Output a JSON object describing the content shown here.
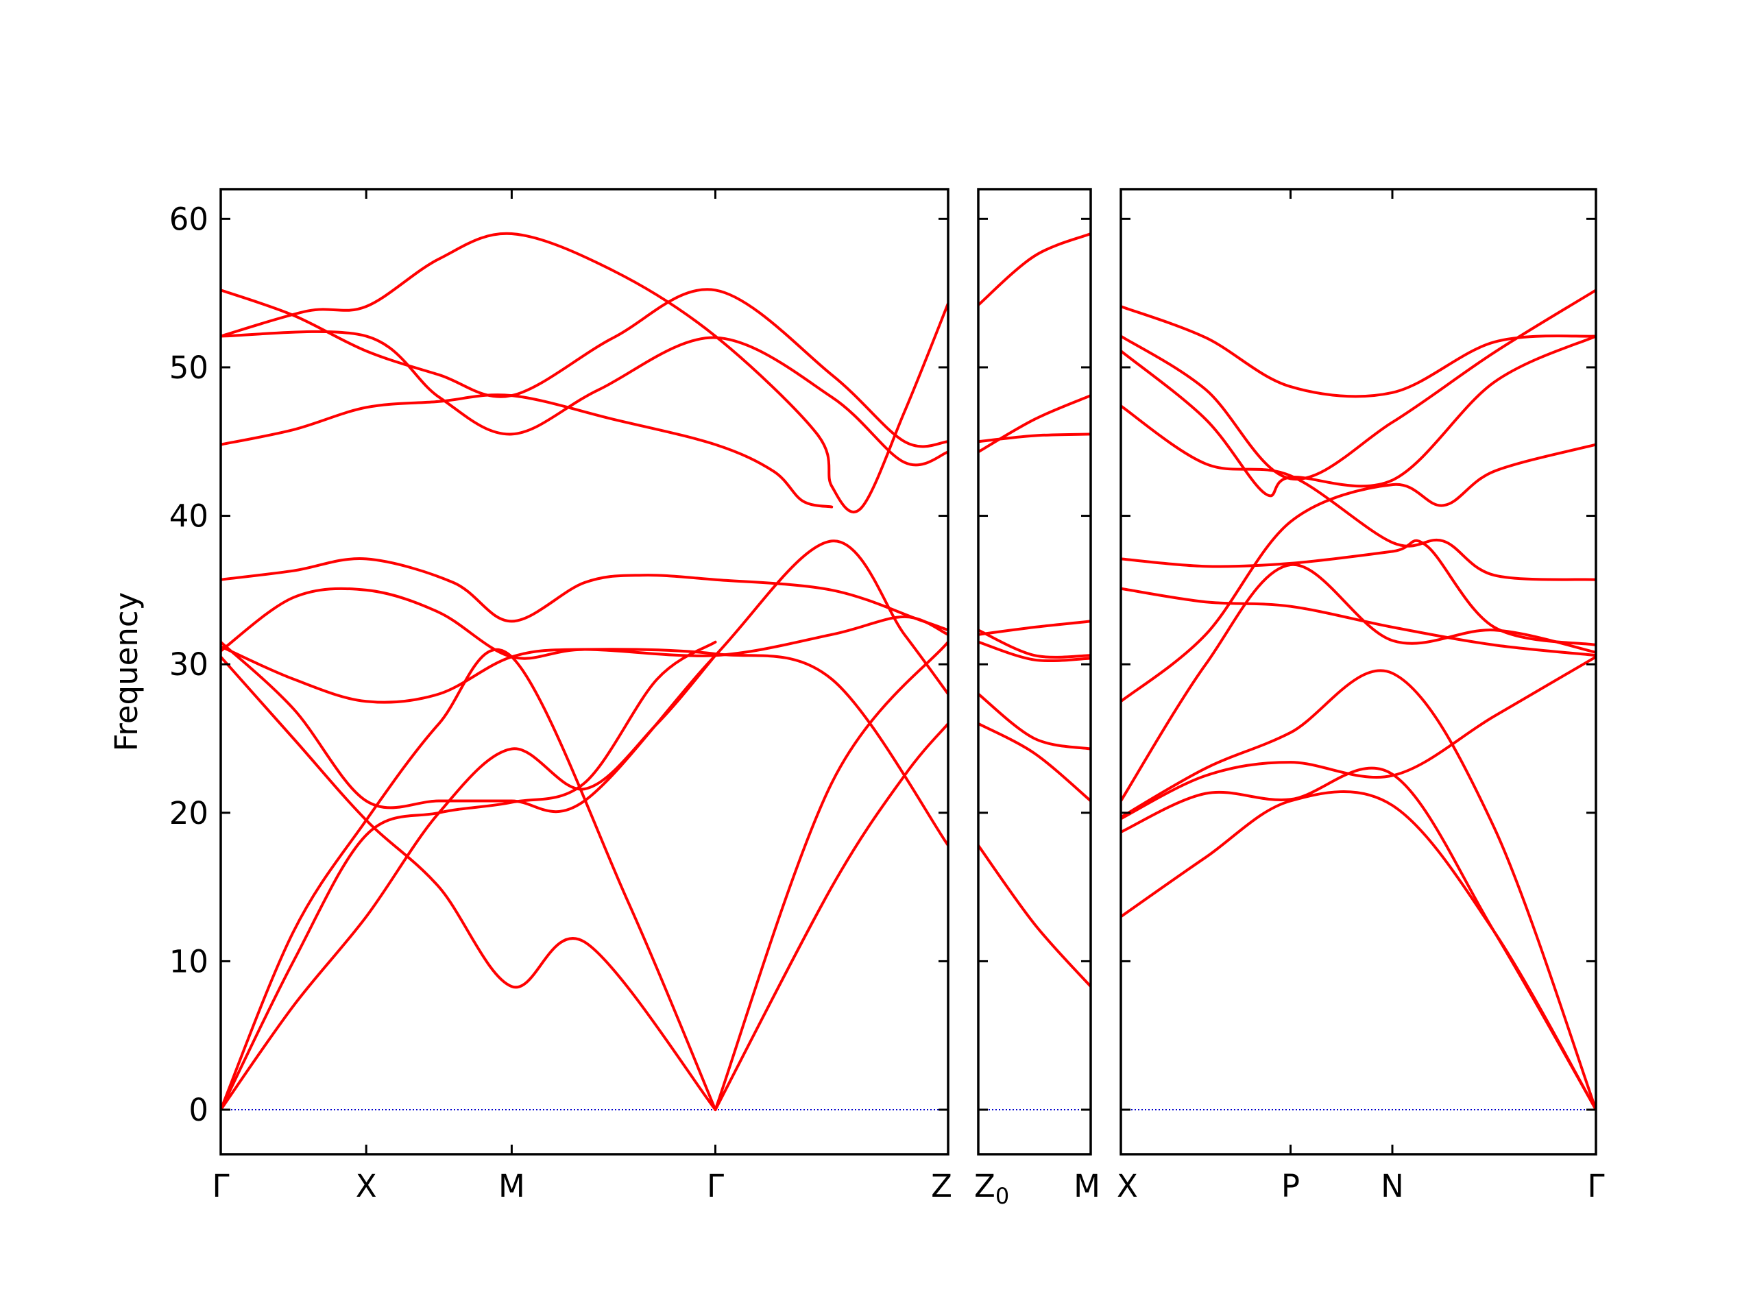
{
  "chart_data": {
    "type": "line",
    "title": "",
    "ylabel": "Frequency",
    "ylim": [
      -3,
      62
    ],
    "yticks": [
      0,
      10,
      20,
      30,
      40,
      50,
      60
    ],
    "grid": false,
    "legend": "none",
    "colors": {
      "band": "#ff0000",
      "zero_line": "#0000cc",
      "axis": "#000000"
    },
    "panels": [
      {
        "xlim": [
          0,
          5
        ],
        "xticks": [
          {
            "x": 0,
            "label": "Γ"
          },
          {
            "x": 1,
            "label": "X"
          },
          {
            "x": 2,
            "label": "M"
          },
          {
            "x": 3.4,
            "label": "Γ"
          },
          {
            "x": 5,
            "label": "Z"
          }
        ],
        "bands": [
          [
            [
              0,
              52.1
            ],
            [
              1,
              52.1
            ],
            [
              1.5,
              48
            ],
            [
              2,
              45.5
            ],
            [
              2.6,
              48.5
            ],
            [
              3.4,
              52
            ],
            [
              4.2,
              48
            ],
            [
              4.7,
              43.6
            ],
            [
              5,
              44.3
            ]
          ],
          [
            [
              0,
              55.2
            ],
            [
              0.5,
              53.5
            ],
            [
              1,
              51.1
            ],
            [
              1.5,
              49.5
            ],
            [
              2,
              48.1
            ],
            [
              2.7,
              52
            ],
            [
              3.4,
              55.2
            ],
            [
              4.2,
              49.5
            ],
            [
              4.7,
              45
            ],
            [
              5,
              45
            ]
          ],
          [
            [
              0,
              52.1
            ],
            [
              0.6,
              53.8
            ],
            [
              1,
              54.1
            ],
            [
              1.5,
              57.3
            ],
            [
              2,
              59
            ],
            [
              2.7,
              56.5
            ],
            [
              3.4,
              52.1
            ],
            [
              4.1,
              45.5
            ],
            [
              4.2,
              42
            ],
            [
              4.4,
              40.5
            ],
            [
              4.7,
              47
            ],
            [
              5,
              54.3
            ]
          ],
          [
            [
              0,
              44.8
            ],
            [
              0.5,
              45.8
            ],
            [
              1,
              47.3
            ],
            [
              1.5,
              47.7
            ],
            [
              2,
              48.1
            ],
            [
              2.7,
              46.5
            ],
            [
              3.4,
              44.8
            ],
            [
              3.8,
              43
            ],
            [
              4.0,
              41
            ],
            [
              4.2,
              40.6
            ]
          ],
          [
            [
              0,
              35.7
            ],
            [
              0.5,
              36.3
            ],
            [
              1,
              37.1
            ],
            [
              1.6,
              35.5
            ],
            [
              2,
              32.9
            ],
            [
              2.5,
              35.5
            ],
            [
              2.9,
              36
            ],
            [
              3.4,
              35.7
            ],
            [
              4.2,
              35
            ],
            [
              4.8,
              33
            ],
            [
              5,
              32.3
            ]
          ],
          [
            [
              0,
              30.9
            ],
            [
              0.5,
              34.5
            ],
            [
              1,
              35
            ],
            [
              1.5,
              33.5
            ],
            [
              2,
              30.5
            ],
            [
              2.5,
              31
            ],
            [
              3.4,
              30.6
            ],
            [
              4.2,
              32
            ],
            [
              4.7,
              33.2
            ],
            [
              5,
              32
            ]
          ],
          [
            [
              0,
              31.2
            ],
            [
              0.5,
              29
            ],
            [
              1,
              27.5
            ],
            [
              1.5,
              28
            ],
            [
              2,
              30.5
            ],
            [
              2.5,
              31
            ],
            [
              3.4,
              30.7
            ],
            [
              4.2,
              29
            ],
            [
              5,
              17.8
            ]
          ],
          [
            [
              0,
              31.5
            ],
            [
              0.5,
              27
            ],
            [
              1,
              20.8
            ],
            [
              1.5,
              20.8
            ],
            [
              2,
              20.8
            ],
            [
              2.5,
              20.8
            ],
            [
              3.4,
              30.6
            ],
            [
              4.2,
              38.3
            ],
            [
              4.7,
              32
            ],
            [
              5,
              28
            ]
          ],
          [
            [
              0,
              30.5
            ],
            [
              0.5,
              25
            ],
            [
              1,
              19.5
            ],
            [
              1.5,
              15
            ],
            [
              2,
              8.3
            ],
            [
              2.5,
              11.3
            ],
            [
              3.4,
              0
            ]
          ],
          [
            [
              0,
              0
            ],
            [
              0.5,
              12
            ],
            [
              1,
              19.5
            ],
            [
              1.5,
              26
            ],
            [
              2,
              30.5
            ],
            [
              2.8,
              14
            ],
            [
              3.4,
              0
            ]
          ],
          [
            [
              0,
              0
            ],
            [
              0.5,
              10
            ],
            [
              1,
              18.5
            ],
            [
              1.5,
              20
            ],
            [
              2,
              20.7
            ],
            [
              2.5,
              22
            ],
            [
              3,
              29
            ],
            [
              3.4,
              31.5
            ]
          ],
          [
            [
              0,
              0
            ],
            [
              0.5,
              7
            ],
            [
              1,
              13
            ],
            [
              1.5,
              20
            ],
            [
              2,
              24.3
            ],
            [
              2.5,
              21.6
            ],
            [
              3,
              26
            ],
            [
              3.4,
              30.6
            ]
          ],
          [
            [
              3.4,
              0
            ],
            [
              4.2,
              22
            ],
            [
              5,
              31.5
            ]
          ],
          [
            [
              3.4,
              0
            ],
            [
              4.2,
              15
            ],
            [
              4.7,
              22.5
            ],
            [
              5,
              26
            ]
          ]
        ]
      },
      {
        "xlim": [
          0,
          1
        ],
        "xticks": [
          {
            "x": 0,
            "label": "Z₀"
          },
          {
            "x": 1,
            "label": "M"
          }
        ],
        "bands": [
          [
            [
              0,
              54.2
            ],
            [
              0.5,
              57.5
            ],
            [
              1,
              59
            ]
          ],
          [
            [
              0,
              44.3
            ],
            [
              0.5,
              46.5
            ],
            [
              1,
              48.1
            ]
          ],
          [
            [
              0,
              45
            ],
            [
              0.5,
              45.4
            ],
            [
              1,
              45.5
            ]
          ],
          [
            [
              0,
              32
            ],
            [
              0.5,
              32.5
            ],
            [
              1,
              32.9
            ]
          ],
          [
            [
              0,
              32.3
            ],
            [
              0.5,
              30.6
            ],
            [
              1,
              30.6
            ]
          ],
          [
            [
              0,
              31.5
            ],
            [
              0.5,
              30.3
            ],
            [
              1,
              30.4
            ]
          ],
          [
            [
              0,
              28
            ],
            [
              0.5,
              25
            ],
            [
              1,
              24.3
            ]
          ],
          [
            [
              0,
              26
            ],
            [
              0.5,
              24
            ],
            [
              1,
              20.8
            ]
          ],
          [
            [
              0,
              17.8
            ],
            [
              0.5,
              12.5
            ],
            [
              1,
              8.3
            ]
          ]
        ]
      },
      {
        "xlim": [
          0,
          2.8
        ],
        "xticks": [
          {
            "x": 0,
            "label": "X"
          },
          {
            "x": 1.0,
            "label": "P"
          },
          {
            "x": 1.6,
            "label": "N"
          },
          {
            "x": 2.8,
            "label": "Γ"
          }
        ],
        "bands": [
          [
            [
              0,
              54.1
            ],
            [
              0.5,
              52
            ],
            [
              1,
              48.7
            ],
            [
              1.6,
              48.3
            ],
            [
              2.2,
              51.7
            ],
            [
              2.8,
              52.1
            ]
          ],
          [
            [
              0,
              52.1
            ],
            [
              0.5,
              48.5
            ],
            [
              1,
              42.5
            ],
            [
              1.6,
              46.3
            ],
            [
              2.2,
              51
            ],
            [
              2.8,
              55.2
            ]
          ],
          [
            [
              0,
              51.1
            ],
            [
              0.5,
              46.5
            ],
            [
              0.85,
              41.5
            ],
            [
              1.0,
              42.6
            ],
            [
              1.6,
              42.4
            ],
            [
              2.2,
              49
            ],
            [
              2.8,
              52.1
            ]
          ],
          [
            [
              0,
              47.4
            ],
            [
              0.5,
              43.5
            ],
            [
              1,
              42.7
            ],
            [
              1.6,
              38.2
            ],
            [
              1.9,
              38.3
            ],
            [
              2.2,
              36
            ],
            [
              2.8,
              35.7
            ]
          ],
          [
            [
              0,
              37.1
            ],
            [
              0.5,
              36.6
            ],
            [
              1,
              36.8
            ],
            [
              1.6,
              37.6
            ],
            [
              1.8,
              38
            ],
            [
              2.2,
              32.5
            ],
            [
              2.8,
              31.3
            ]
          ],
          [
            [
              0,
              35.1
            ],
            [
              0.5,
              34.2
            ],
            [
              1,
              33.9
            ],
            [
              1.6,
              32.5
            ],
            [
              2.2,
              31.3
            ],
            [
              2.8,
              30.6
            ]
          ],
          [
            [
              0,
              27.5
            ],
            [
              0.5,
              32
            ],
            [
              1,
              39.6
            ],
            [
              1.6,
              42.1
            ],
            [
              1.9,
              40.7
            ],
            [
              2.2,
              43
            ],
            [
              2.8,
              44.8
            ]
          ],
          [
            [
              0,
              20.8
            ],
            [
              0.5,
              30
            ],
            [
              1,
              36.7
            ],
            [
              1.6,
              31.6
            ],
            [
              2.2,
              32.3
            ],
            [
              2.8,
              30.8
            ]
          ],
          [
            [
              0,
              19.7
            ],
            [
              0.5,
              23
            ],
            [
              1,
              25.4
            ],
            [
              1.6,
              29.4
            ],
            [
              2.2,
              19
            ],
            [
              2.8,
              0
            ]
          ],
          [
            [
              0,
              19.6
            ],
            [
              0.5,
              22.5
            ],
            [
              1,
              23.4
            ],
            [
              1.6,
              22.5
            ],
            [
              2.2,
              26.5
            ],
            [
              2.8,
              30.5
            ]
          ],
          [
            [
              0,
              18.7
            ],
            [
              0.5,
              21.3
            ],
            [
              1,
              20.9
            ],
            [
              1.6,
              22.6
            ],
            [
              2.2,
              12
            ],
            [
              2.8,
              0
            ]
          ],
          [
            [
              0,
              13
            ],
            [
              0.5,
              17
            ],
            [
              1,
              20.8
            ],
            [
              1.6,
              20.5
            ],
            [
              2.2,
              12
            ],
            [
              2.8,
              0
            ]
          ]
        ]
      }
    ]
  }
}
